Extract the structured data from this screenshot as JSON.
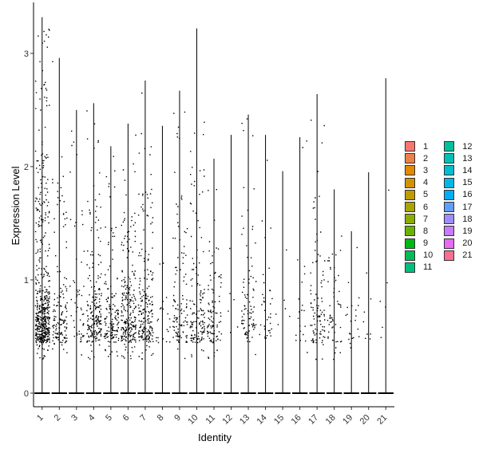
{
  "chart_data": {
    "type": "violin-jitter",
    "xlabel": "Identity",
    "ylabel": "Expression Level",
    "categories": [
      "1",
      "2",
      "3",
      "4",
      "5",
      "6",
      "7",
      "8",
      "9",
      "10",
      "11",
      "12",
      "13",
      "14",
      "15",
      "16",
      "17",
      "18",
      "19",
      "20",
      "21"
    ],
    "yticks": [
      0,
      1,
      2,
      3
    ],
    "ylim": [
      -0.12,
      3.45
    ],
    "grid": false,
    "legend_position": "right",
    "series": [
      {
        "identity": "1",
        "color": "#F8766D",
        "max": 3.32,
        "n": 900,
        "frac_nonzero": 0.58
      },
      {
        "identity": "2",
        "color": "#EF7F49",
        "max": 2.96,
        "n": 260,
        "frac_nonzero": 0.55
      },
      {
        "identity": "3",
        "color": "#E38900",
        "max": 2.5,
        "n": 120,
        "frac_nonzero": 0.45
      },
      {
        "identity": "4",
        "color": "#D39200",
        "max": 2.56,
        "n": 420,
        "frac_nonzero": 0.5
      },
      {
        "identity": "5",
        "color": "#C09B00",
        "max": 2.18,
        "n": 320,
        "frac_nonzero": 0.45
      },
      {
        "identity": "6",
        "color": "#A9A400",
        "max": 2.38,
        "n": 480,
        "frac_nonzero": 0.5
      },
      {
        "identity": "7",
        "color": "#8EAB00",
        "max": 2.76,
        "n": 420,
        "frac_nonzero": 0.5
      },
      {
        "identity": "8",
        "color": "#6BB100",
        "max": 2.36,
        "n": 60,
        "frac_nonzero": 0.35
      },
      {
        "identity": "9",
        "color": "#00B813",
        "max": 2.67,
        "n": 260,
        "frac_nonzero": 0.45
      },
      {
        "identity": "10",
        "color": "#00BC56",
        "max": 3.22,
        "n": 300,
        "frac_nonzero": 0.48
      },
      {
        "identity": "11",
        "color": "#00BF7D",
        "max": 2.07,
        "n": 230,
        "frac_nonzero": 0.45
      },
      {
        "identity": "12",
        "color": "#00C19C",
        "max": 2.28,
        "n": 20,
        "frac_nonzero": 0.3
      },
      {
        "identity": "13",
        "color": "#00C0B7",
        "max": 2.46,
        "n": 200,
        "frac_nonzero": 0.45
      },
      {
        "identity": "14",
        "color": "#00BDD0",
        "max": 2.28,
        "n": 90,
        "frac_nonzero": 0.4
      },
      {
        "identity": "15",
        "color": "#00B7E6",
        "max": 1.96,
        "n": 20,
        "frac_nonzero": 0.3
      },
      {
        "identity": "16",
        "color": "#00ADFA",
        "max": 2.26,
        "n": 60,
        "frac_nonzero": 0.35
      },
      {
        "identity": "17",
        "color": "#619CFF",
        "max": 2.64,
        "n": 220,
        "frac_nonzero": 0.45
      },
      {
        "identity": "18",
        "color": "#9F8CFF",
        "max": 1.8,
        "n": 120,
        "frac_nonzero": 0.45
      },
      {
        "identity": "19",
        "color": "#C77CFF",
        "max": 1.43,
        "n": 60,
        "frac_nonzero": 0.35
      },
      {
        "identity": "20",
        "color": "#E76BF3",
        "max": 1.95,
        "n": 25,
        "frac_nonzero": 0.3
      },
      {
        "identity": "21",
        "color": "#FF6C91",
        "max": 2.78,
        "n": 20,
        "frac_nonzero": 0.3
      }
    ],
    "legend": {
      "col1": [
        "1",
        "2",
        "3",
        "4",
        "5",
        "6",
        "7",
        "8",
        "9",
        "10",
        "11"
      ],
      "col2": [
        "12",
        "13",
        "14",
        "15",
        "16",
        "17",
        "18",
        "19",
        "20",
        "21"
      ]
    }
  }
}
